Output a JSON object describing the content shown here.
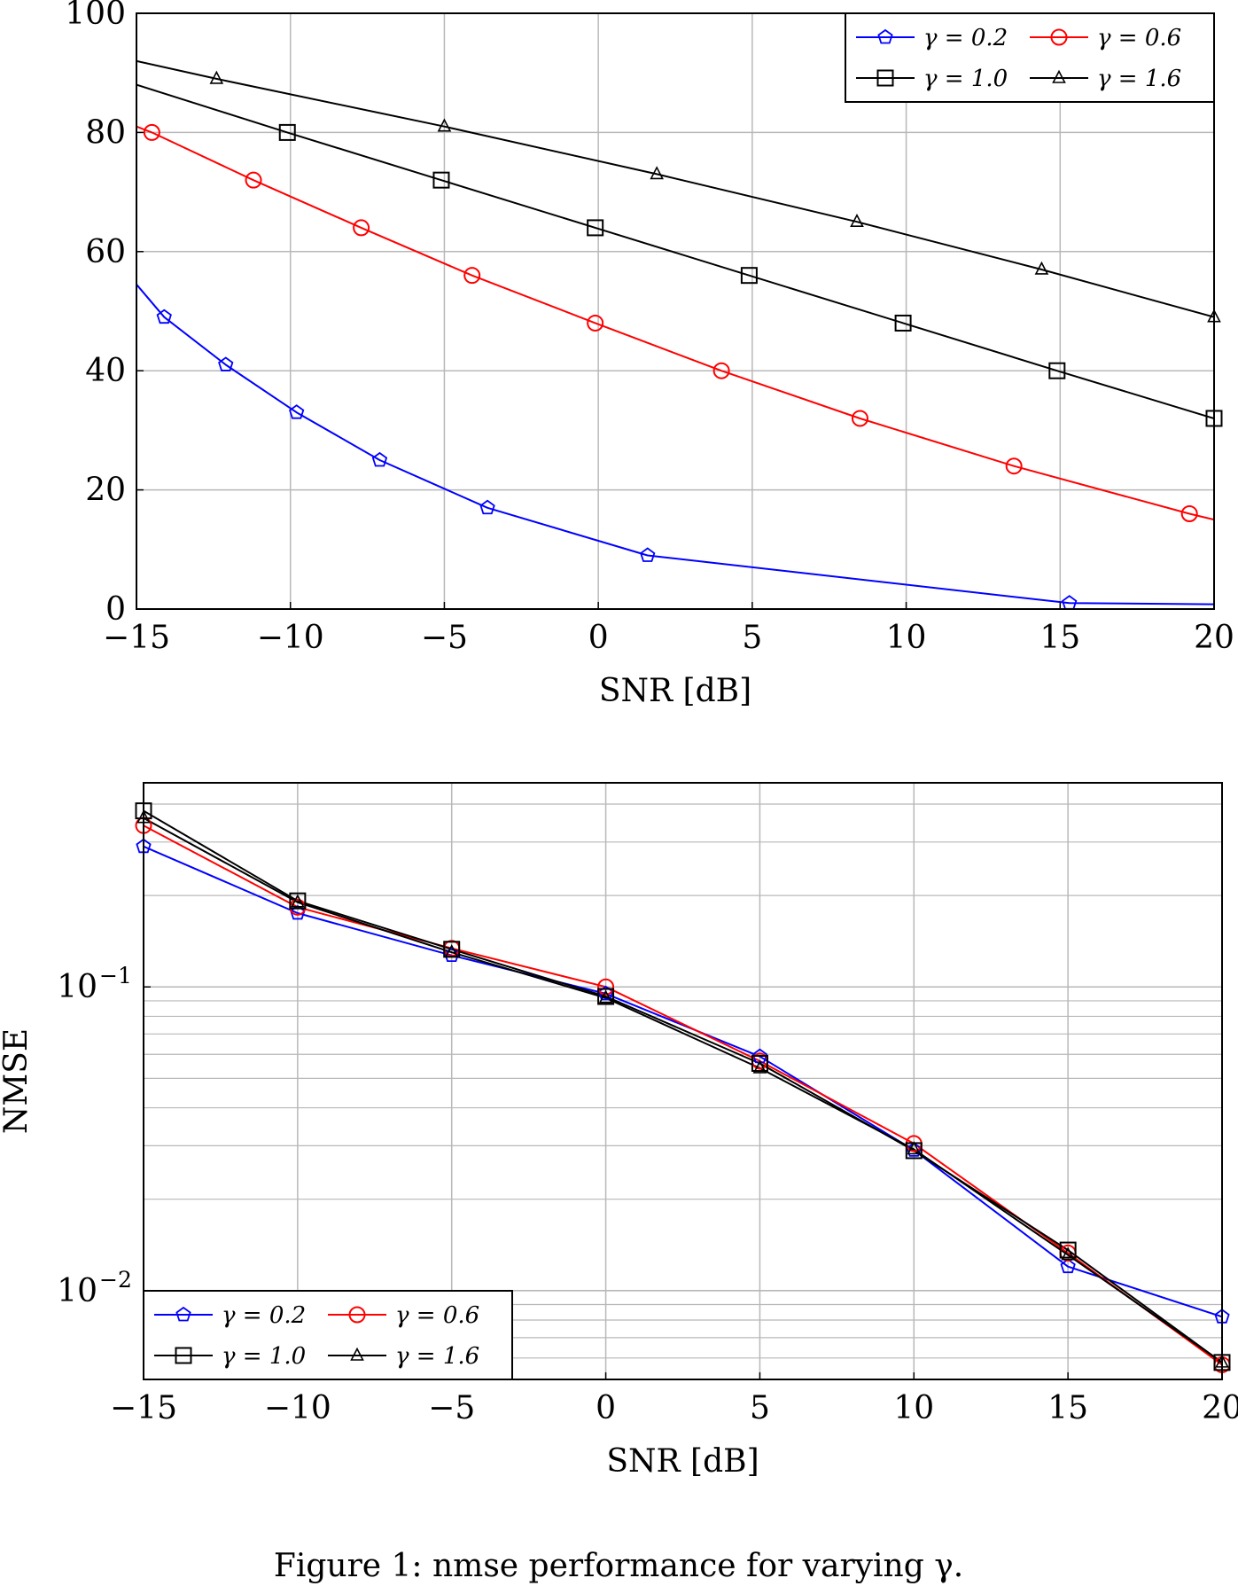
{
  "caption": "Figure 1: nmse performance for varying γ.",
  "colors": {
    "blue": "#0000ff",
    "red": "#ff0000",
    "black": "#000000",
    "grid": "#b8b8b8"
  },
  "chart_data": [
    {
      "type": "line",
      "title": "",
      "xlabel": "SNR [dB]",
      "ylabel": "",
      "xlim": [
        -15,
        20
      ],
      "ylim": [
        0,
        100
      ],
      "xticks": [
        "−15",
        "−10",
        "−5",
        "0",
        "5",
        "10",
        "15",
        "20"
      ],
      "yticks": [
        "0",
        "20",
        "40",
        "60",
        "80",
        "100"
      ],
      "grid": true,
      "legend_position": "top-right",
      "series": [
        {
          "name": "γ = 0.2",
          "color": "#0000ff",
          "marker": "pentagon",
          "x": [
            -15,
            -14.1,
            -12.1,
            -9.8,
            -7.1,
            -3.6,
            1.6,
            15.3,
            20
          ],
          "y": [
            54.5,
            49,
            41,
            33,
            25,
            17,
            9,
            1,
            0.8
          ],
          "markers": [
            1,
            2,
            3,
            4,
            5,
            6,
            7
          ]
        },
        {
          "name": "γ = 0.6",
          "color": "#ff0000",
          "marker": "circle",
          "x": [
            -15,
            -14.5,
            -11.2,
            -7.7,
            -4.1,
            -0.1,
            4,
            8.5,
            13.5,
            19.2,
            20
          ],
          "y": [
            81,
            80,
            72,
            64,
            56,
            48,
            40,
            32,
            24,
            16,
            15
          ],
          "markers": [
            1,
            2,
            3,
            4,
            5,
            6,
            7,
            8,
            9
          ]
        },
        {
          "name": "γ = 1.0",
          "color": "#000000",
          "marker": "square",
          "x": [
            -15,
            -10.1,
            -5.1,
            -0.1,
            4.9,
            9.9,
            14.9,
            20
          ],
          "y": [
            88,
            80,
            72,
            64,
            56,
            48,
            40,
            32
          ],
          "markers": [
            1,
            2,
            3,
            4,
            5,
            6,
            7
          ]
        },
        {
          "name": "γ = 1.6",
          "color": "#000000",
          "marker": "triangle",
          "x": [
            -15,
            -12.4,
            -5,
            1.9,
            8.4,
            14.4,
            20
          ],
          "y": [
            92,
            89,
            81,
            73,
            65,
            57,
            49
          ],
          "markers": [
            1,
            2,
            3,
            4,
            5,
            6
          ]
        }
      ]
    },
    {
      "type": "line",
      "title": "",
      "xlabel": "SNR [dB]",
      "ylabel": "NMSE",
      "yscale": "log",
      "xlim": [
        -15,
        20
      ],
      "ylim": [
        0.0051,
        0.47
      ],
      "xticks": [
        "−15",
        "−10",
        "−5",
        "0",
        "5",
        "10",
        "15",
        "20"
      ],
      "yticks": [
        {
          "value": 0.1,
          "base": "10",
          "exp": "−1"
        },
        {
          "value": 0.01,
          "base": "10",
          "exp": "−2"
        }
      ],
      "grid": true,
      "legend_position": "bottom-left",
      "series": [
        {
          "name": "γ = 0.2",
          "color": "#0000ff",
          "marker": "pentagon",
          "x": [
            -15,
            -10,
            -5,
            0,
            5,
            10,
            15,
            20
          ],
          "y": [
            0.29,
            0.175,
            0.127,
            0.095,
            0.059,
            0.029,
            0.012,
            0.0082
          ]
        },
        {
          "name": "γ = 0.6",
          "color": "#ff0000",
          "marker": "circle",
          "x": [
            -15,
            -10,
            -5,
            0,
            5,
            10,
            15,
            20
          ],
          "y": [
            0.34,
            0.183,
            0.134,
            0.1,
            0.057,
            0.0305,
            0.0133,
            0.0057
          ]
        },
        {
          "name": "γ = 1.0",
          "color": "#000000",
          "marker": "square",
          "x": [
            -15,
            -10,
            -5,
            0,
            5,
            10,
            15,
            20
          ],
          "y": [
            0.38,
            0.192,
            0.133,
            0.093,
            0.056,
            0.0289,
            0.0136,
            0.0058
          ]
        },
        {
          "name": "γ = 1.6",
          "color": "#000000",
          "marker": "triangle",
          "x": [
            -15,
            -10,
            -5,
            0,
            5,
            10,
            15,
            20
          ],
          "y": [
            0.36,
            0.19,
            0.13,
            0.092,
            0.054,
            0.0292,
            0.0131,
            0.0058
          ]
        }
      ]
    }
  ]
}
